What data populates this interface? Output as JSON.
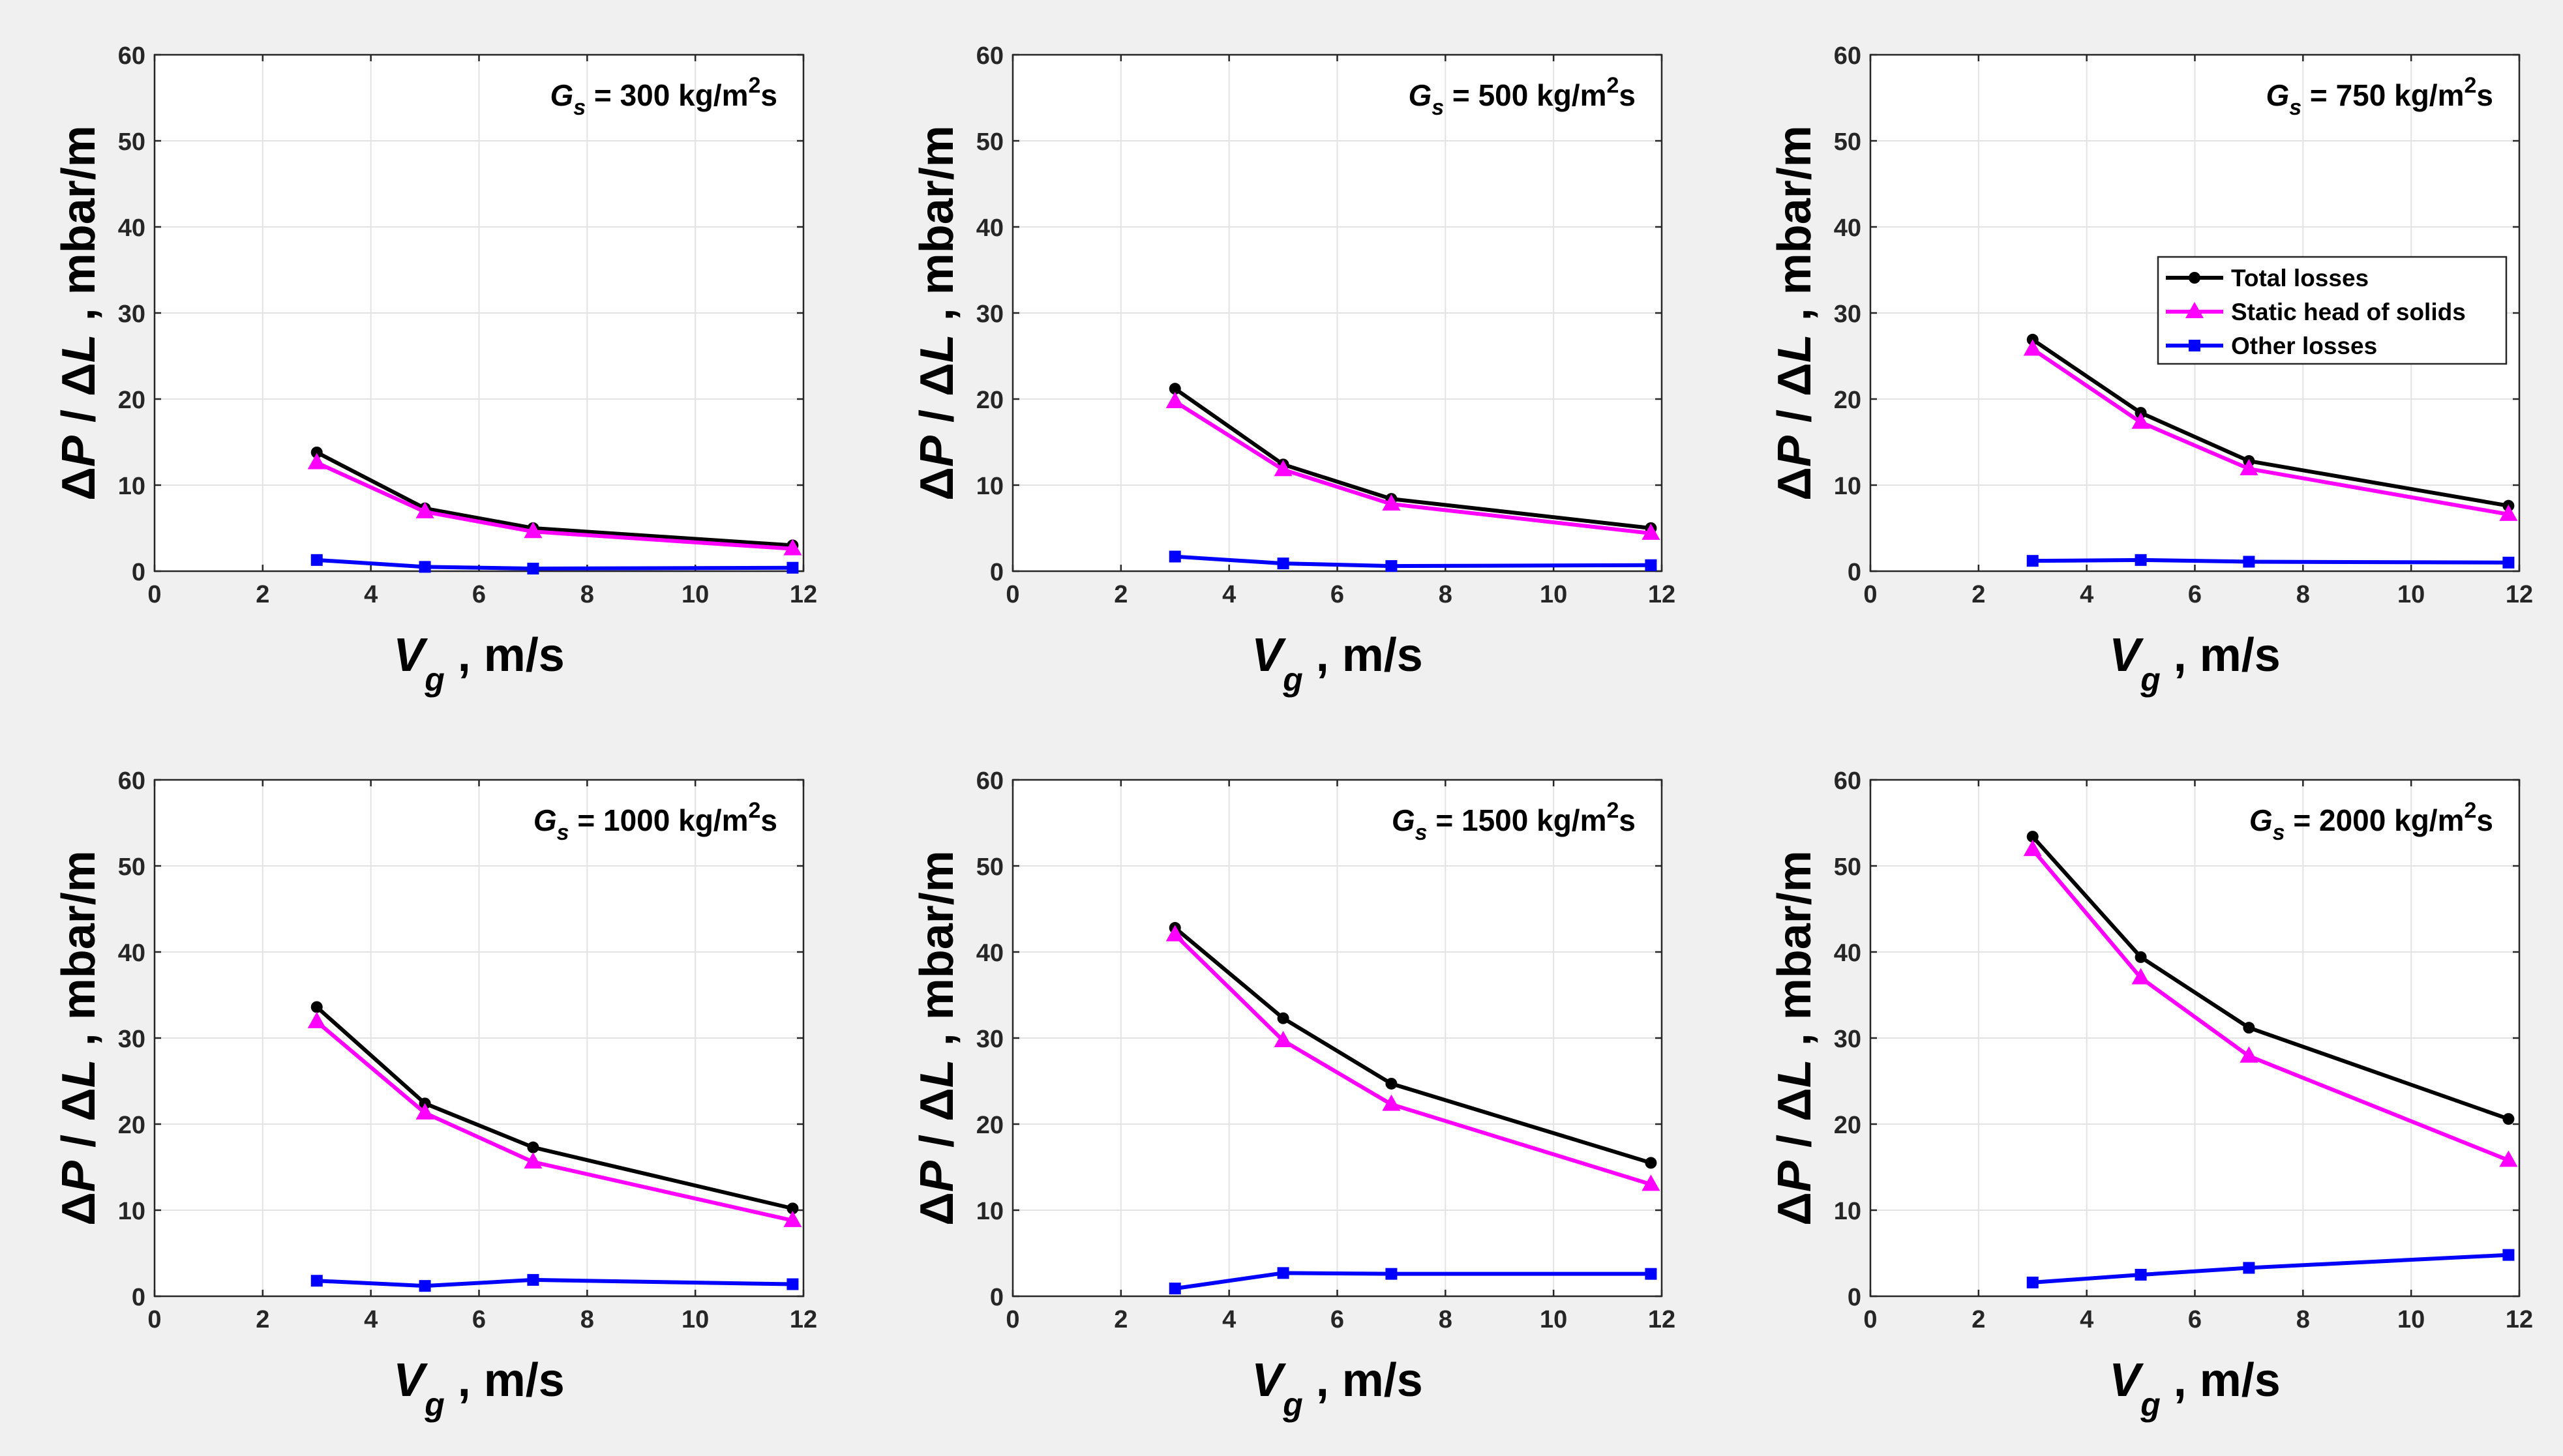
{
  "figure": {
    "ylabel": {
      "prefix_ital_1": "P",
      "mid": " / ",
      "prefix_ital_2": "L",
      "delta": "Δ",
      "units": " ,  mbar/m"
    },
    "xlabel": {
      "var": "V",
      "sub": "g",
      "units": " , m/s"
    },
    "legend": [
      "Total losses",
      "Static head of solids",
      "Other losses"
    ],
    "colors": {
      "total": "#000000",
      "static": "#ff00ff",
      "other": "#0000ff",
      "grid": "#e3e3e3",
      "axes_bg": "#ffffff",
      "fig_bg": "#f0f0f0"
    }
  },
  "chart_data": [
    {
      "type": "line",
      "title": "G_s = 300 kg/m^2s",
      "title_parts": {
        "G": "G",
        "s": "s",
        "mid": " = 300 kg/m",
        "sup": "2",
        "end": "s"
      },
      "x": [
        3,
        5,
        7,
        11.8
      ],
      "xlim": [
        0,
        12
      ],
      "ylim": [
        0,
        60
      ],
      "xticks": [
        0,
        2,
        4,
        6,
        8,
        10,
        12
      ],
      "yticks": [
        0,
        10,
        20,
        30,
        40,
        50,
        60
      ],
      "series": [
        {
          "name": "Total losses",
          "values": [
            13.8,
            7.3,
            5.0,
            3.0
          ]
        },
        {
          "name": "Static head of solids",
          "values": [
            12.6,
            6.9,
            4.6,
            2.6
          ]
        },
        {
          "name": "Other losses",
          "values": [
            1.3,
            0.5,
            0.3,
            0.4
          ]
        }
      ]
    },
    {
      "type": "line",
      "title": "G_s = 500 kg/m^2s",
      "title_parts": {
        "G": "G",
        "s": "s",
        "mid": " = 500 kg/m",
        "sup": "2",
        "end": "s"
      },
      "x": [
        3,
        5,
        7,
        11.8
      ],
      "xlim": [
        0,
        12
      ],
      "ylim": [
        0,
        60
      ],
      "xticks": [
        0,
        2,
        4,
        6,
        8,
        10,
        12
      ],
      "yticks": [
        0,
        10,
        20,
        30,
        40,
        50,
        60
      ],
      "series": [
        {
          "name": "Total losses",
          "values": [
            21.2,
            12.4,
            8.4,
            5.0
          ]
        },
        {
          "name": "Static head of solids",
          "values": [
            19.7,
            11.8,
            7.8,
            4.4
          ]
        },
        {
          "name": "Other losses",
          "values": [
            1.7,
            0.9,
            0.6,
            0.7
          ]
        }
      ]
    },
    {
      "type": "line",
      "title": "G_s = 750 kg/m^2s",
      "title_parts": {
        "G": "G",
        "s": "s",
        "mid": " = 750 kg/m",
        "sup": "2",
        "end": "s"
      },
      "x": [
        3,
        5,
        7,
        11.8
      ],
      "xlim": [
        0,
        12
      ],
      "ylim": [
        0,
        60
      ],
      "xticks": [
        0,
        2,
        4,
        6,
        8,
        10,
        12
      ],
      "yticks": [
        0,
        10,
        20,
        30,
        40,
        50,
        60
      ],
      "legend": {
        "location": "center-right",
        "entries": [
          "Total losses",
          "Static head of solids",
          "Other losses"
        ]
      },
      "series": [
        {
          "name": "Total losses",
          "values": [
            26.9,
            18.4,
            12.8,
            7.6
          ]
        },
        {
          "name": "Static head of solids",
          "values": [
            25.8,
            17.3,
            11.9,
            6.6
          ]
        },
        {
          "name": "Other losses",
          "values": [
            1.2,
            1.3,
            1.1,
            1.0
          ]
        }
      ]
    },
    {
      "type": "line",
      "title": "G_s = 1000 kg/m^2s",
      "title_parts": {
        "G": "G",
        "s": "s",
        "mid": " = 1000 kg/m",
        "sup": "2",
        "end": "s"
      },
      "x": [
        3,
        5,
        7,
        11.8
      ],
      "xlim": [
        0,
        12
      ],
      "ylim": [
        0,
        60
      ],
      "xticks": [
        0,
        2,
        4,
        6,
        8,
        10,
        12
      ],
      "yticks": [
        0,
        10,
        20,
        30,
        40,
        50,
        60
      ],
      "series": [
        {
          "name": "Total losses",
          "values": [
            33.6,
            22.4,
            17.3,
            10.2
          ]
        },
        {
          "name": "Static head of solids",
          "values": [
            31.9,
            21.3,
            15.6,
            8.8
          ]
        },
        {
          "name": "Other losses",
          "values": [
            1.8,
            1.2,
            1.9,
            1.4
          ]
        }
      ]
    },
    {
      "type": "line",
      "title": "G_s = 1500 kg/m^2s",
      "title_parts": {
        "G": "G",
        "s": "s",
        "mid": " = 1500 kg/m",
        "sup": "2",
        "end": "s"
      },
      "x": [
        3,
        5,
        7,
        11.8
      ],
      "xlim": [
        0,
        12
      ],
      "ylim": [
        0,
        60
      ],
      "xticks": [
        0,
        2,
        4,
        6,
        8,
        10,
        12
      ],
      "yticks": [
        0,
        10,
        20,
        30,
        40,
        50,
        60
      ],
      "series": [
        {
          "name": "Total losses",
          "values": [
            42.8,
            32.3,
            24.7,
            15.5
          ]
        },
        {
          "name": "Static head of solids",
          "values": [
            42.0,
            29.7,
            22.3,
            13.0
          ]
        },
        {
          "name": "Other losses",
          "values": [
            0.9,
            2.7,
            2.6,
            2.6
          ]
        }
      ]
    },
    {
      "type": "line",
      "title": "G_s = 2000 kg/m^2s",
      "title_parts": {
        "G": "G",
        "s": "s",
        "mid": " = 2000 kg/m",
        "sup": "2",
        "end": "s"
      },
      "x": [
        3,
        5,
        7,
        11.8
      ],
      "xlim": [
        0,
        12
      ],
      "ylim": [
        0,
        60
      ],
      "xticks": [
        0,
        2,
        4,
        6,
        8,
        10,
        12
      ],
      "yticks": [
        0,
        10,
        20,
        30,
        40,
        50,
        60
      ],
      "series": [
        {
          "name": "Total losses",
          "values": [
            53.4,
            39.4,
            31.2,
            20.6
          ]
        },
        {
          "name": "Static head of solids",
          "values": [
            51.9,
            37.0,
            27.9,
            15.8
          ]
        },
        {
          "name": "Other losses",
          "values": [
            1.6,
            2.5,
            3.3,
            4.8
          ]
        }
      ]
    }
  ]
}
